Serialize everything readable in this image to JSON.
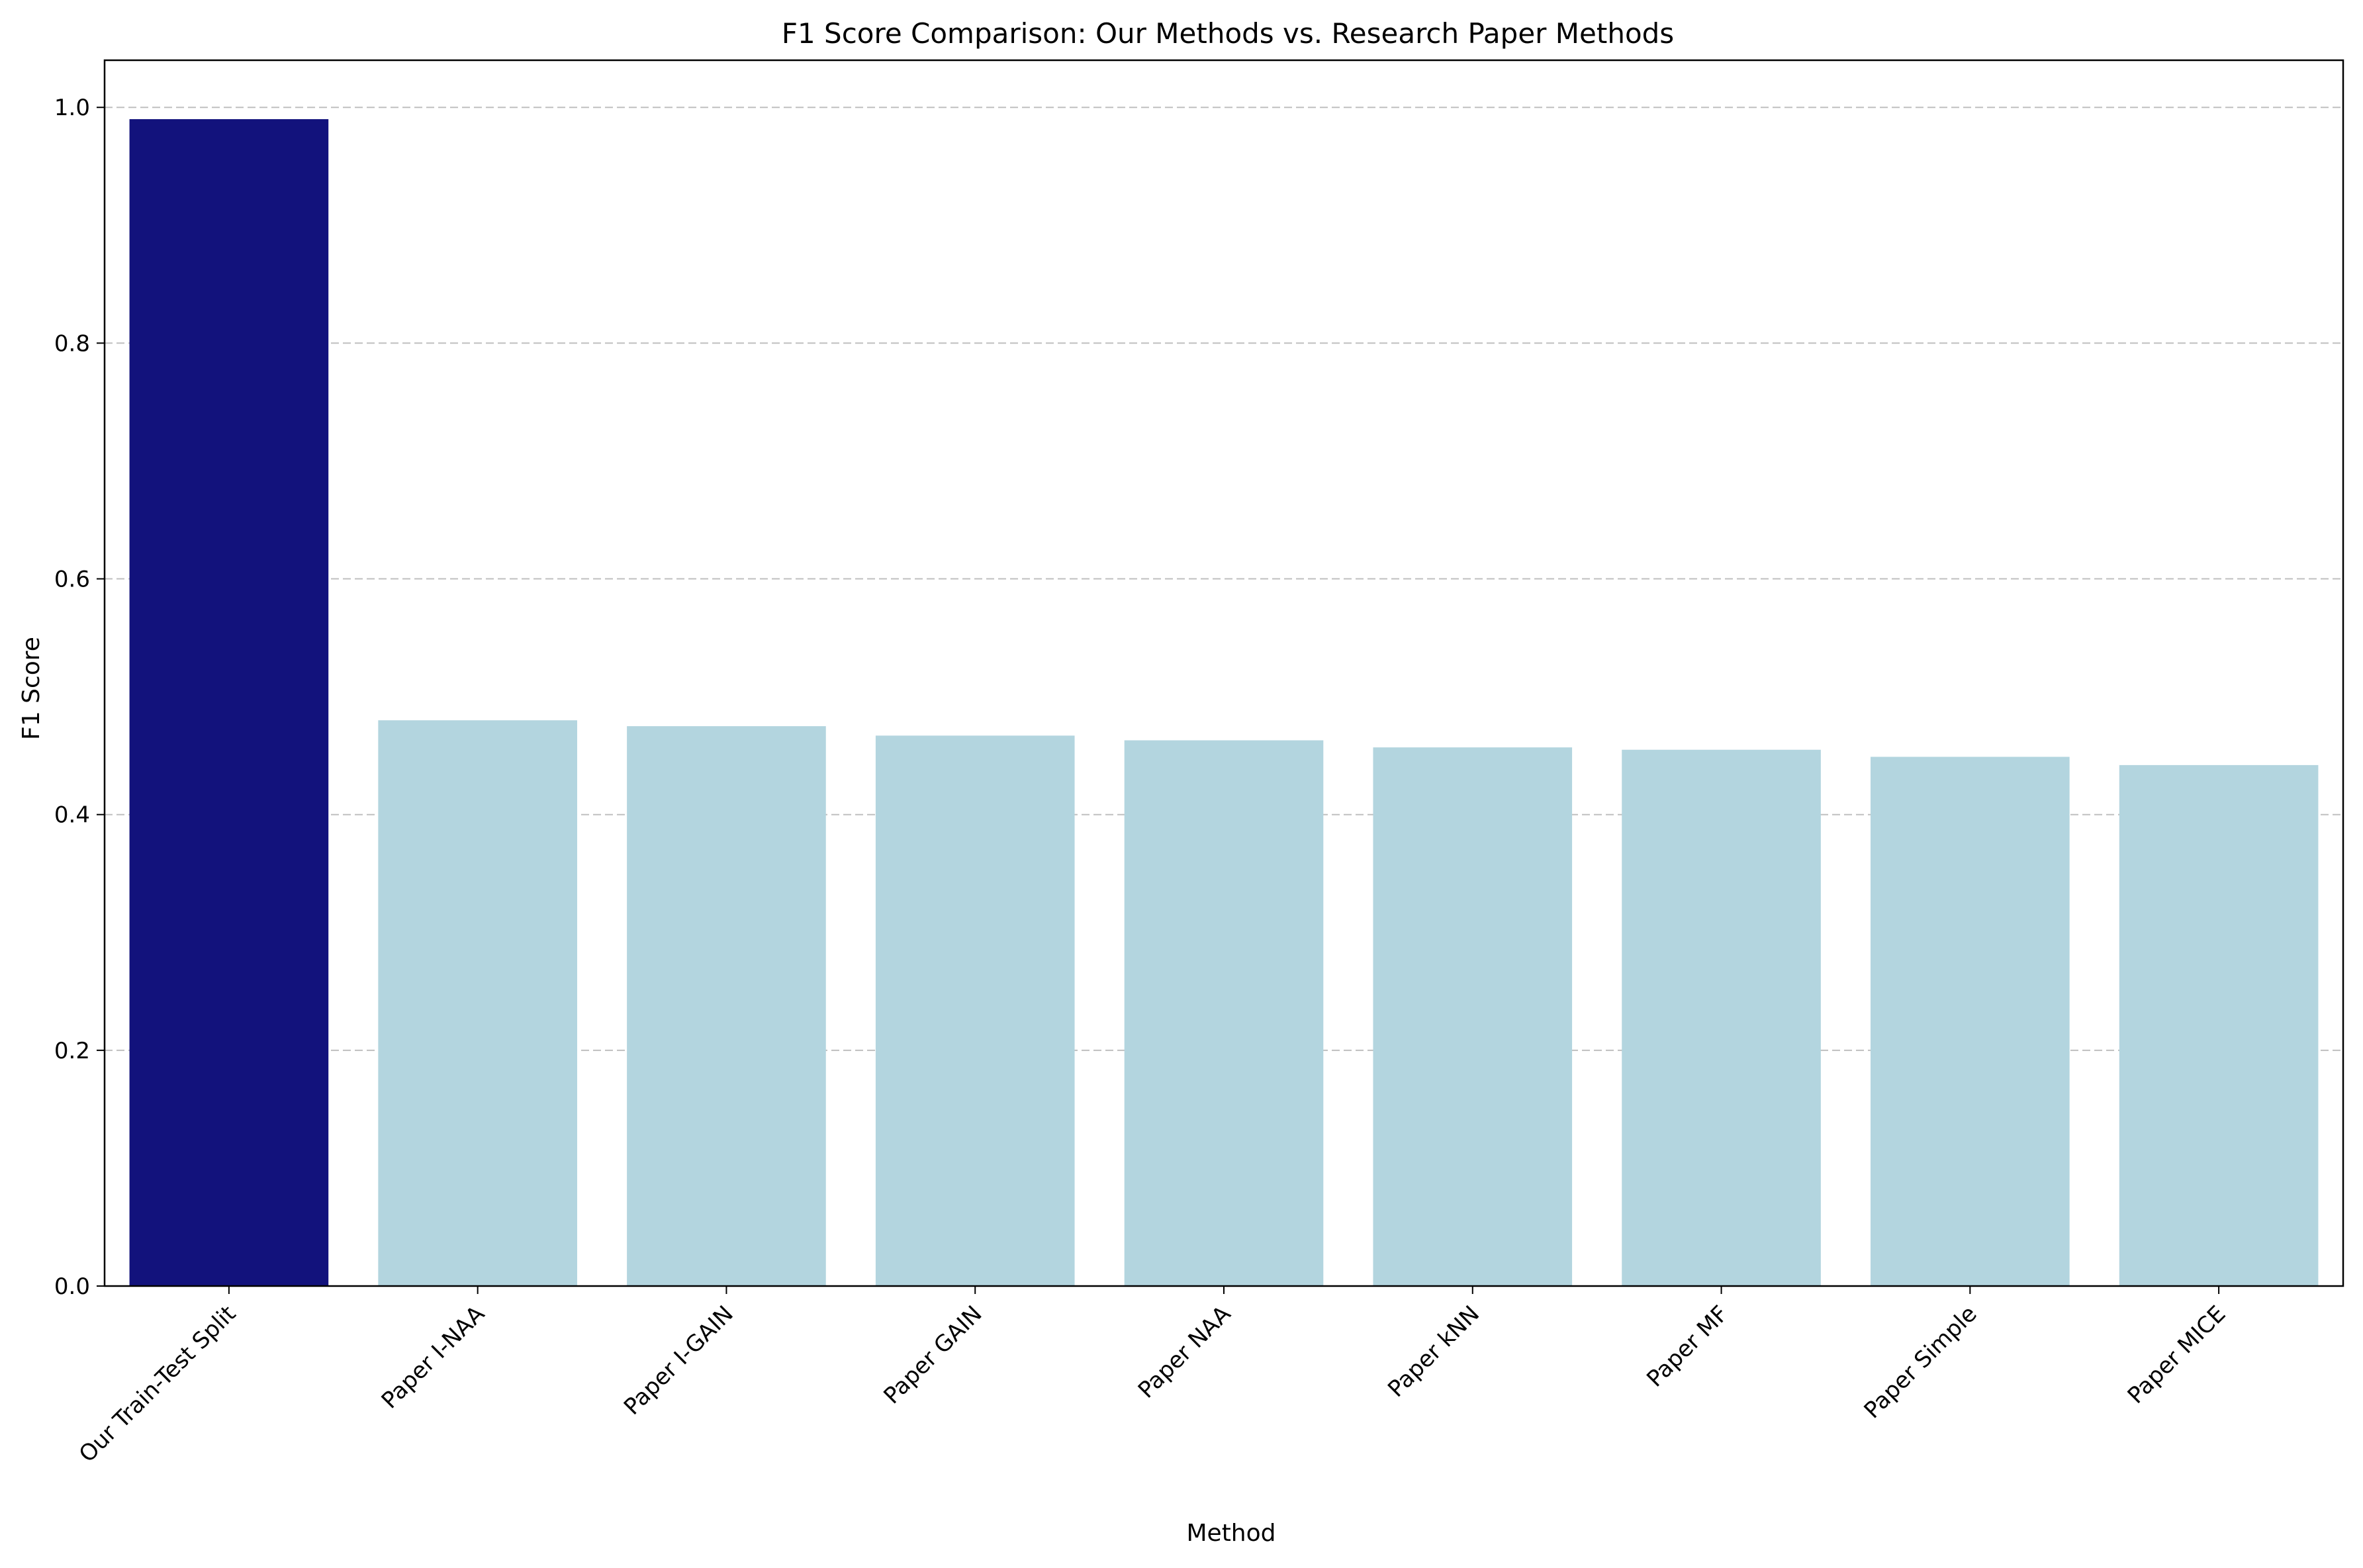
{
  "chart_data": {
    "type": "bar",
    "title": "F1 Score Comparison: Our Methods vs. Research Paper Methods",
    "xlabel": "Method",
    "ylabel": "F1 Score",
    "categories": [
      "Our Train-Test Split",
      "Paper I-NAA",
      "Paper I-GAIN",
      "Paper GAIN",
      "Paper NAA",
      "Paper kNN",
      "Paper MF",
      "Paper Simple",
      "Paper MICE"
    ],
    "values": [
      0.99,
      0.48,
      0.475,
      0.467,
      0.463,
      0.457,
      0.455,
      0.449,
      0.442
    ],
    "colors": [
      "#12127c",
      "#b3d5df",
      "#b3d5df",
      "#b3d5df",
      "#b3d5df",
      "#b3d5df",
      "#b3d5df",
      "#b3d5df",
      "#b3d5df"
    ],
    "ylim": [
      0,
      1.04
    ],
    "yticks": [
      "0.0",
      "0.2",
      "0.4",
      "0.6",
      "0.8",
      "1.0"
    ],
    "grid": "y-dashed",
    "legend": "none"
  }
}
